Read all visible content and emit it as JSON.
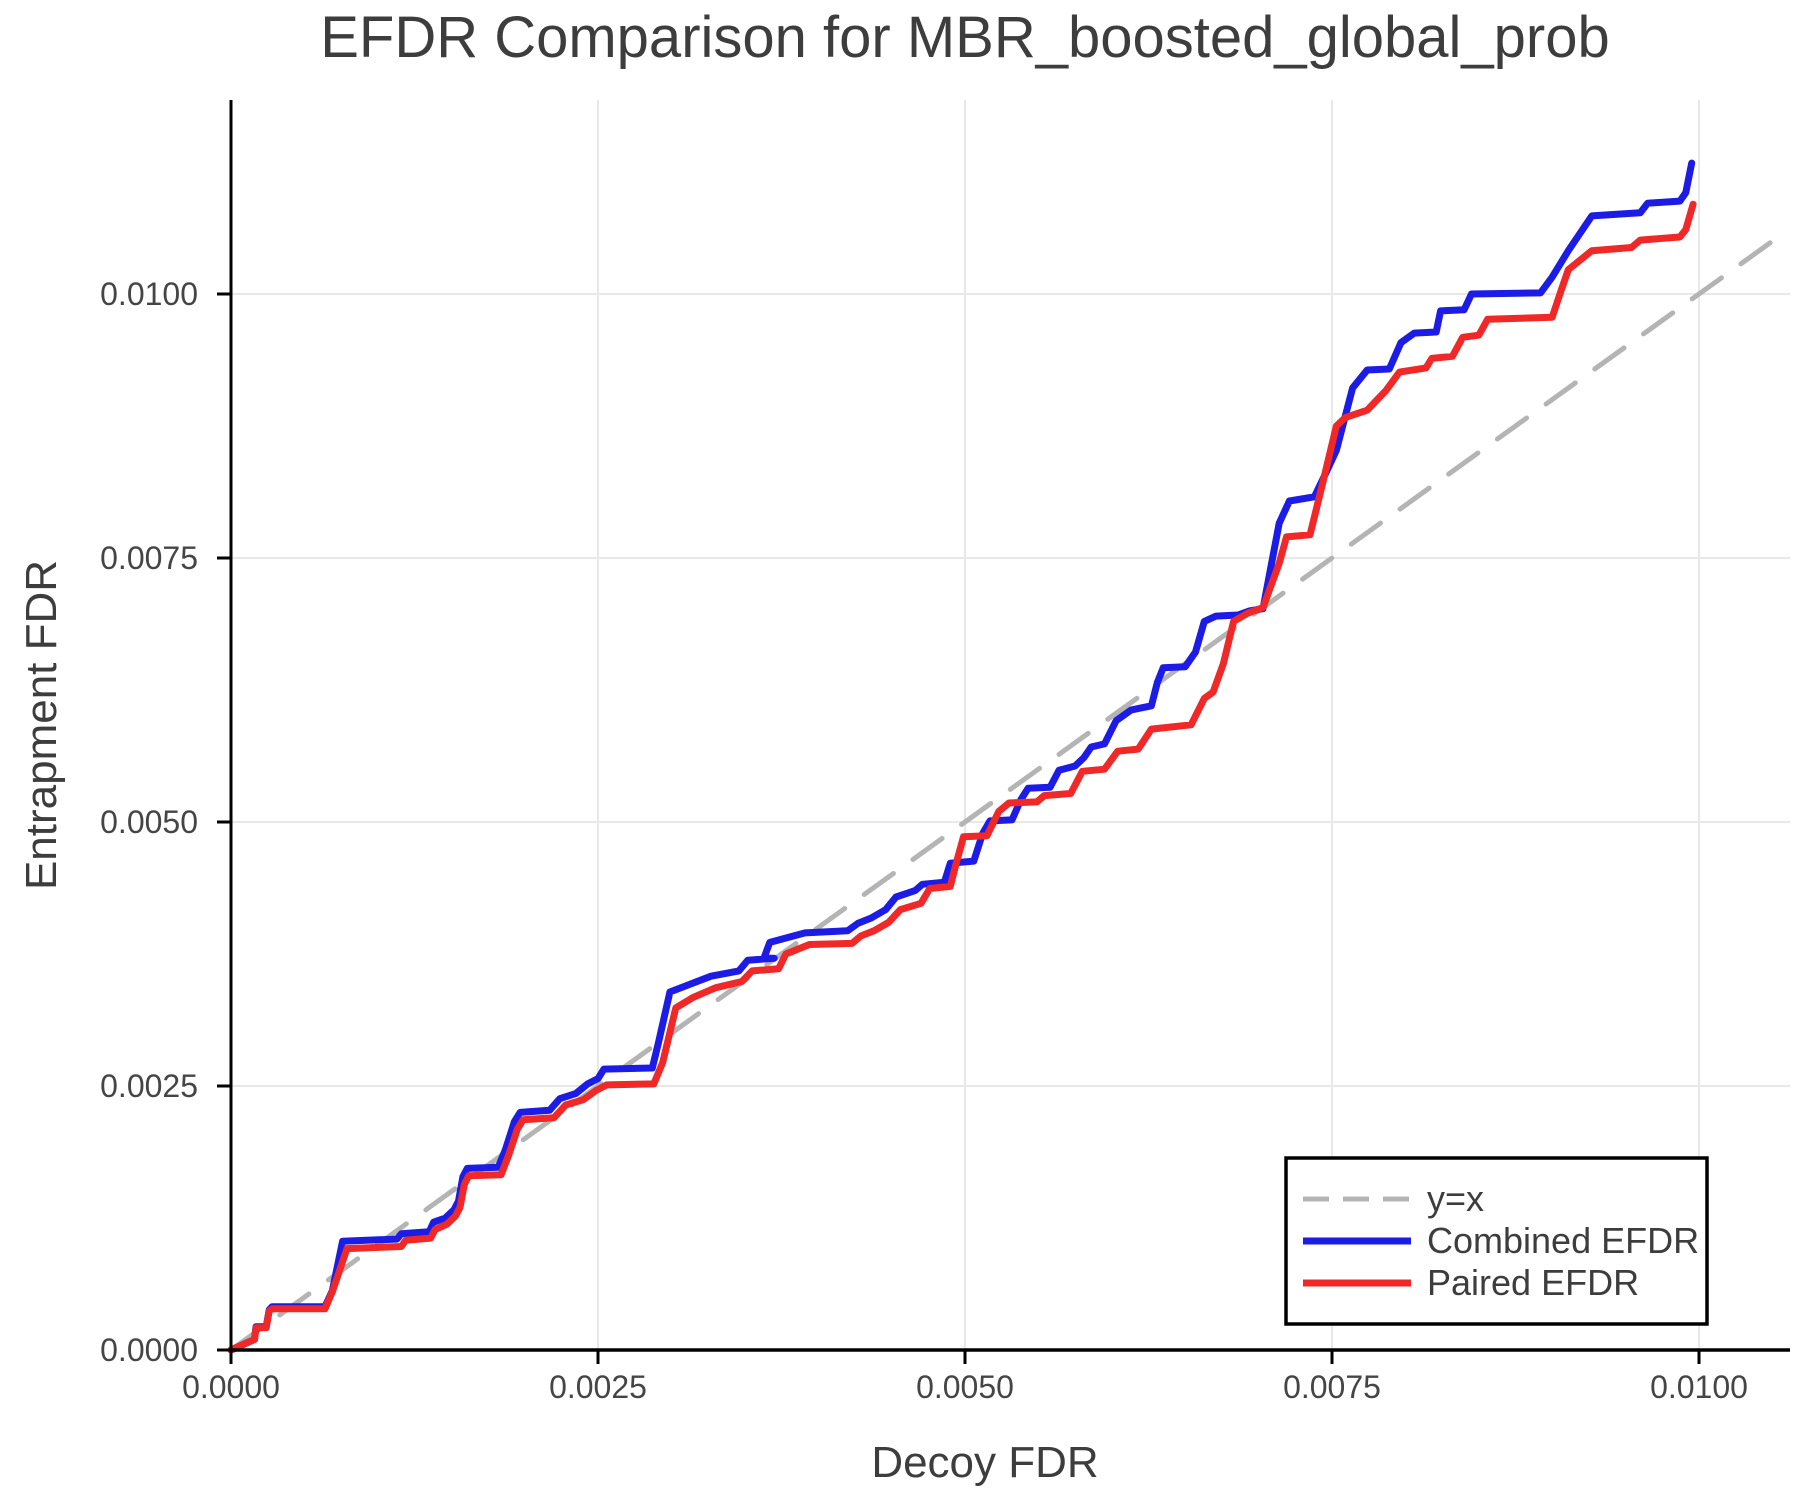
{
  "chart_data": {
    "type": "line",
    "title": "EFDR Comparison for MBR_boosted_global_prob",
    "xlabel": "Decoy FDR",
    "ylabel": "Entrapment FDR",
    "xlim": [
      0.0,
      0.0106
    ],
    "ylim": [
      0.0,
      0.0118
    ],
    "x_ticks": [
      0.0,
      0.0025,
      0.005,
      0.0075,
      0.01
    ],
    "x_tick_labels": [
      "0.0000",
      "0.0025",
      "0.0050",
      "0.0075",
      "0.0100"
    ],
    "y_ticks": [
      0.0,
      0.0025,
      0.005,
      0.0075,
      0.01
    ],
    "y_tick_labels": [
      "0.0000",
      "0.0025",
      "0.0050",
      "0.0075",
      "0.0100"
    ],
    "grid": true,
    "legend_position": "lower right",
    "colors": {
      "grid": "#e8e8e8",
      "spine": "#000000",
      "tick": "#000000",
      "text": "#3d3d3d",
      "background": "#ffffff",
      "legend_border": "#000000"
    },
    "series": [
      {
        "name": "y=x",
        "style": "dashed",
        "color": "#b4b4b4",
        "width": 5,
        "points": [
          [
            0.0,
            0.0
          ],
          [
            0.0106,
            0.0106
          ]
        ]
      },
      {
        "name": "Combined EFDR",
        "style": "solid",
        "color": "#1c1ce6",
        "width": 7,
        "points": [
          [
            0.0,
            0.0
          ],
          [
            0.00016,
            0.0001
          ],
          [
            0.00017,
            0.00022
          ],
          [
            0.00024,
            0.00022
          ],
          [
            0.00026,
            0.00038
          ],
          [
            0.00028,
            0.00041
          ],
          [
            0.00064,
            0.00041
          ],
          [
            0.00069,
            0.00056
          ],
          [
            0.00076,
            0.00103
          ],
          [
            0.00113,
            0.00105
          ],
          [
            0.00116,
            0.0011
          ],
          [
            0.00135,
            0.00112
          ],
          [
            0.00138,
            0.00121
          ],
          [
            0.00146,
            0.00125
          ],
          [
            0.00152,
            0.00133
          ],
          [
            0.00155,
            0.00141
          ],
          [
            0.00158,
            0.00164
          ],
          [
            0.00161,
            0.00172
          ],
          [
            0.00182,
            0.00173
          ],
          [
            0.00187,
            0.0019
          ],
          [
            0.00193,
            0.00216
          ],
          [
            0.00197,
            0.00225
          ],
          [
            0.00217,
            0.00227
          ],
          [
            0.00224,
            0.00238
          ],
          [
            0.00235,
            0.00243
          ],
          [
            0.00243,
            0.00252
          ],
          [
            0.0025,
            0.00257
          ],
          [
            0.00254,
            0.00266
          ],
          [
            0.00287,
            0.00267
          ],
          [
            0.00291,
            0.0029
          ],
          [
            0.00299,
            0.00339
          ],
          [
            0.00312,
            0.00346
          ],
          [
            0.00327,
            0.00354
          ],
          [
            0.00346,
            0.00359
          ],
          [
            0.00352,
            0.00369
          ],
          [
            0.0037,
            0.00371
          ],
          [
            0.00363,
            0.00371
          ],
          [
            0.00367,
            0.00386
          ],
          [
            0.00391,
            0.00395
          ],
          [
            0.0042,
            0.00397
          ],
          [
            0.00427,
            0.00404
          ],
          [
            0.00436,
            0.00409
          ],
          [
            0.00446,
            0.00417
          ],
          [
            0.00453,
            0.00429
          ],
          [
            0.00466,
            0.00435
          ],
          [
            0.00471,
            0.00441
          ],
          [
            0.00486,
            0.00443
          ],
          [
            0.0049,
            0.00461
          ],
          [
            0.00506,
            0.00463
          ],
          [
            0.00512,
            0.00489
          ],
          [
            0.00517,
            0.00501
          ],
          [
            0.00532,
            0.00502
          ],
          [
            0.00538,
            0.00521
          ],
          [
            0.00543,
            0.00532
          ],
          [
            0.00558,
            0.00533
          ],
          [
            0.00564,
            0.00549
          ],
          [
            0.00575,
            0.00553
          ],
          [
            0.00581,
            0.00561
          ],
          [
            0.00586,
            0.00571
          ],
          [
            0.00595,
            0.00574
          ],
          [
            0.00603,
            0.00596
          ],
          [
            0.00613,
            0.00606
          ],
          [
            0.00627,
            0.0061
          ],
          [
            0.00631,
            0.00632
          ],
          [
            0.00635,
            0.00646
          ],
          [
            0.0065,
            0.00647
          ],
          [
            0.00657,
            0.00661
          ],
          [
            0.00663,
            0.0069
          ],
          [
            0.00671,
            0.00695
          ],
          [
            0.00686,
            0.00696
          ],
          [
            0.00694,
            0.007
          ],
          [
            0.00703,
            0.00702
          ],
          [
            0.00714,
            0.00783
          ],
          [
            0.00721,
            0.00804
          ],
          [
            0.00738,
            0.00808
          ],
          [
            0.00746,
            0.00831
          ],
          [
            0.00753,
            0.00852
          ],
          [
            0.00764,
            0.00911
          ],
          [
            0.00774,
            0.00928
          ],
          [
            0.00789,
            0.00929
          ],
          [
            0.00797,
            0.00954
          ],
          [
            0.00806,
            0.00963
          ],
          [
            0.00821,
            0.00964
          ],
          [
            0.00824,
            0.00984
          ],
          [
            0.0084,
            0.00985
          ],
          [
            0.00845,
            0.01
          ],
          [
            0.00892,
            0.01001
          ],
          [
            0.009,
            0.01016
          ],
          [
            0.00911,
            0.01041
          ],
          [
            0.00927,
            0.01074
          ],
          [
            0.0096,
            0.01077
          ],
          [
            0.00965,
            0.01086
          ],
          [
            0.00987,
            0.01088
          ],
          [
            0.00991,
            0.01096
          ],
          [
            0.00995,
            0.01124
          ]
        ]
      },
      {
        "name": "Paired EFDR",
        "style": "solid",
        "color": "#f02828",
        "width": 7,
        "points": [
          [
            0.0,
            0.0
          ],
          [
            0.00016,
            0.0001
          ],
          [
            0.00017,
            0.00021
          ],
          [
            0.00024,
            0.00021
          ],
          [
            0.00026,
            0.00037
          ],
          [
            0.00028,
            0.00039
          ],
          [
            0.00064,
            0.00039
          ],
          [
            0.00069,
            0.00055
          ],
          [
            0.00079,
            0.00096
          ],
          [
            0.00116,
            0.00098
          ],
          [
            0.00119,
            0.00104
          ],
          [
            0.00136,
            0.00106
          ],
          [
            0.00139,
            0.00114
          ],
          [
            0.00147,
            0.00119
          ],
          [
            0.00153,
            0.00127
          ],
          [
            0.00156,
            0.00135
          ],
          [
            0.00159,
            0.00157
          ],
          [
            0.00162,
            0.00165
          ],
          [
            0.00184,
            0.00166
          ],
          [
            0.00189,
            0.00184
          ],
          [
            0.00195,
            0.00209
          ],
          [
            0.00199,
            0.00218
          ],
          [
            0.0022,
            0.0022
          ],
          [
            0.00228,
            0.00232
          ],
          [
            0.0024,
            0.00237
          ],
          [
            0.00249,
            0.00246
          ],
          [
            0.00256,
            0.00251
          ],
          [
            0.00288,
            0.00252
          ],
          [
            0.00294,
            0.00272
          ],
          [
            0.00303,
            0.00324
          ],
          [
            0.00315,
            0.00334
          ],
          [
            0.0033,
            0.00343
          ],
          [
            0.00348,
            0.00349
          ],
          [
            0.00355,
            0.00359
          ],
          [
            0.00373,
            0.00361
          ],
          [
            0.00378,
            0.00375
          ],
          [
            0.00394,
            0.00384
          ],
          [
            0.00423,
            0.00385
          ],
          [
            0.00429,
            0.00392
          ],
          [
            0.00438,
            0.00397
          ],
          [
            0.00448,
            0.00405
          ],
          [
            0.00456,
            0.00417
          ],
          [
            0.0047,
            0.00423
          ],
          [
            0.00476,
            0.00437
          ],
          [
            0.0049,
            0.00439
          ],
          [
            0.00494,
            0.00461
          ],
          [
            0.00499,
            0.00486
          ],
          [
            0.00515,
            0.00487
          ],
          [
            0.00523,
            0.0051
          ],
          [
            0.0053,
            0.00518
          ],
          [
            0.00549,
            0.00519
          ],
          [
            0.00554,
            0.00525
          ],
          [
            0.00572,
            0.00527
          ],
          [
            0.0058,
            0.00548
          ],
          [
            0.00595,
            0.0055
          ],
          [
            0.00604,
            0.00567
          ],
          [
            0.00618,
            0.00569
          ],
          [
            0.00627,
            0.00588
          ],
          [
            0.00654,
            0.00592
          ],
          [
            0.00663,
            0.00617
          ],
          [
            0.00669,
            0.00623
          ],
          [
            0.00676,
            0.0065
          ],
          [
            0.00683,
            0.0069
          ],
          [
            0.00693,
            0.00698
          ],
          [
            0.00703,
            0.00703
          ],
          [
            0.00714,
            0.00745
          ],
          [
            0.00719,
            0.0077
          ],
          [
            0.00735,
            0.00772
          ],
          [
            0.00743,
            0.00817
          ],
          [
            0.00753,
            0.00875
          ],
          [
            0.00759,
            0.00883
          ],
          [
            0.00774,
            0.0089
          ],
          [
            0.00787,
            0.00909
          ],
          [
            0.00796,
            0.00926
          ],
          [
            0.00814,
            0.0093
          ],
          [
            0.00818,
            0.00939
          ],
          [
            0.00832,
            0.00941
          ],
          [
            0.00839,
            0.00959
          ],
          [
            0.0085,
            0.00961
          ],
          [
            0.00856,
            0.00976
          ],
          [
            0.009,
            0.00978
          ],
          [
            0.00906,
            0.01003
          ],
          [
            0.00911,
            0.01023
          ],
          [
            0.00927,
            0.01041
          ],
          [
            0.00954,
            0.01044
          ],
          [
            0.0096,
            0.01051
          ],
          [
            0.00987,
            0.01054
          ],
          [
            0.00991,
            0.01061
          ],
          [
            0.00996,
            0.01085
          ]
        ]
      }
    ]
  }
}
